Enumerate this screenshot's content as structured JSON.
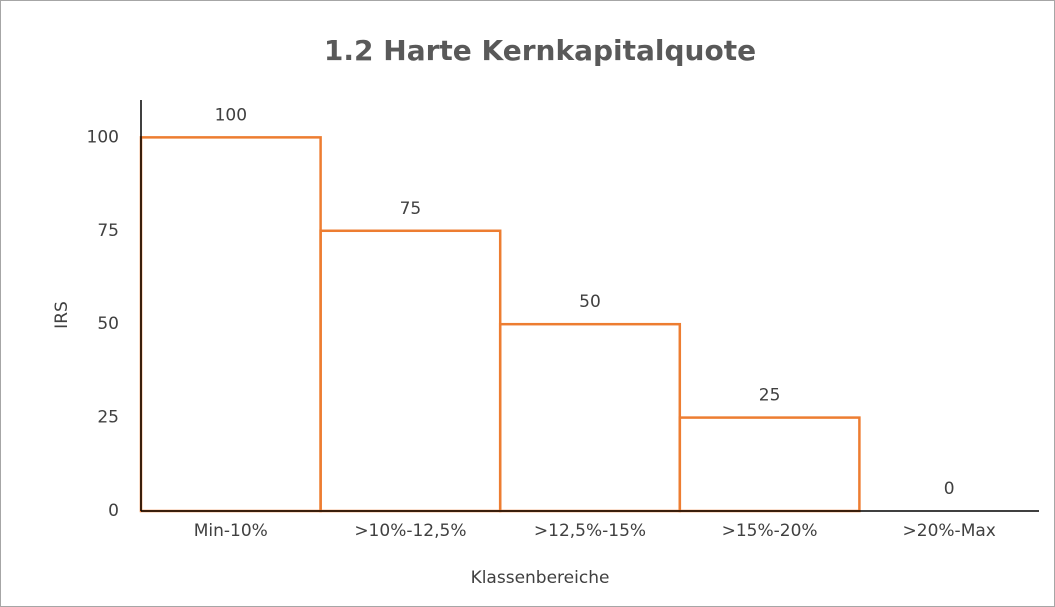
{
  "chart_data": {
    "type": "bar",
    "title": "1.2 Harte Kernkapitalquote",
    "x_label": "Klassenbereiche",
    "y_label": "IRS",
    "categories": [
      "Min-10%",
      ">10%-12,5%",
      ">12,5%-15%",
      ">15%-20%",
      ">20%-Max"
    ],
    "values": [
      100,
      75,
      50,
      25,
      0
    ],
    "color": "#ed7d31",
    "ylim": [
      0,
      110
    ],
    "yticks": [
      0,
      25,
      50,
      75,
      100
    ],
    "grid": false
  }
}
